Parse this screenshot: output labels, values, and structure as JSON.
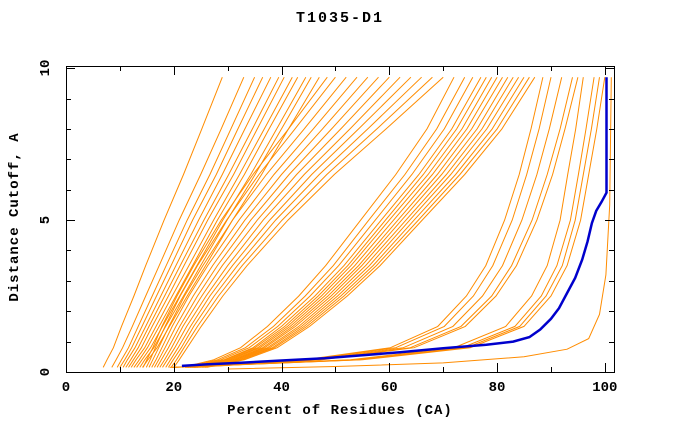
{
  "chart_data": {
    "type": "line",
    "title": "T1035-D1",
    "xlabel": "Percent of Residues (CA)",
    "ylabel": "Distance Cutoff, A",
    "xlim": [
      0,
      101.7
    ],
    "ylim": [
      0,
      10.07
    ],
    "x_major_ticks": [
      0,
      20,
      40,
      60,
      80,
      100
    ],
    "x_minor_ticks": [
      10,
      30,
      50,
      70,
      90
    ],
    "y_major_ticks": [
      0,
      5,
      10
    ],
    "y_minor_ticks": [
      1,
      2,
      3,
      4,
      6,
      7,
      8,
      9
    ],
    "grid": false,
    "legend": "none",
    "colors": {
      "predictions": "#ff8c00",
      "highlight": "#0000cc",
      "axis": "#000000",
      "background": "#ffffff"
    },
    "highlight_series": {
      "pts": [
        21.5,
        0.2,
        26,
        0.25,
        32,
        0.3,
        40,
        0.38,
        48,
        0.45,
        55,
        0.55,
        62,
        0.65,
        70,
        0.78,
        78,
        0.9,
        83,
        1.0,
        86,
        1.15,
        88,
        1.4,
        90,
        1.75,
        91.5,
        2.1,
        93,
        2.6,
        94.5,
        3.1,
        95.8,
        3.7,
        96.8,
        4.3,
        97.6,
        4.9,
        98.4,
        5.3,
        99.4,
        5.6,
        100.3,
        5.9,
        100.3,
        9.7
      ]
    },
    "prediction_series": [
      [
        6.9,
        0.15,
        7.6,
        0.4,
        8.8,
        0.8,
        10.3,
        1.5,
        12.6,
        2.5,
        14.8,
        3.5,
        18.2,
        5,
        21.8,
        6.5,
        25.2,
        8,
        29,
        9.7
      ],
      [
        8.5,
        0.15,
        9.3,
        0.4,
        10.5,
        0.8,
        12.3,
        1.5,
        14.8,
        2.5,
        17.3,
        3.5,
        21,
        5,
        25,
        6.5,
        28.8,
        8,
        33,
        9.7
      ],
      [
        9.5,
        0.15,
        10.3,
        0.4,
        11.6,
        0.8,
        13.4,
        1.5,
        16,
        2.5,
        18.6,
        3.5,
        22.5,
        5,
        26.7,
        6.5,
        30.6,
        8,
        35,
        9.7
      ],
      [
        10,
        0.15,
        10.9,
        0.4,
        12.2,
        0.8,
        14.1,
        1.5,
        16.8,
        2.5,
        19.5,
        3.5,
        23.5,
        5,
        27.9,
        6.5,
        31.9,
        8,
        36.5,
        9.7
      ],
      [
        10.6,
        0.15,
        11.4,
        0.4,
        12.8,
        0.8,
        14.8,
        1.5,
        17.6,
        2.5,
        20.4,
        3.5,
        24.6,
        5,
        29,
        6.5,
        33.2,
        8,
        38,
        9.7
      ],
      [
        11.1,
        0.15,
        12,
        0.4,
        13.4,
        0.8,
        15.4,
        1.5,
        18.3,
        2.5,
        21.2,
        3.5,
        25.6,
        5,
        30.2,
        6.5,
        34.6,
        8,
        39.5,
        9.7
      ],
      [
        11.6,
        0.15,
        12.5,
        0.4,
        14,
        0.8,
        16,
        1.5,
        19,
        2.5,
        21.9,
        3.5,
        26.3,
        5,
        31.1,
        6.5,
        35.5,
        8,
        40.5,
        9.7
      ],
      [
        12.1,
        0.15,
        13,
        0.4,
        14.6,
        0.8,
        16.7,
        1.5,
        19.7,
        2.5,
        22.8,
        3.5,
        27.4,
        5,
        32.2,
        6.5,
        36.8,
        8,
        42,
        9.7
      ],
      [
        12.6,
        0.15,
        13.6,
        0.4,
        15.1,
        0.8,
        17.3,
        1.5,
        20.4,
        2.5,
        23.5,
        3.5,
        28.1,
        5,
        33.1,
        6.5,
        37.7,
        8,
        43,
        9.7
      ],
      [
        13.1,
        0.15,
        14.1,
        0.4,
        15.7,
        0.8,
        17.9,
        1.5,
        21.1,
        2.5,
        24.3,
        3.5,
        29.1,
        5,
        34.3,
        6.5,
        39.1,
        8,
        44.5,
        9.7
      ],
      [
        13.7,
        0.15,
        14.6,
        0.4,
        16.3,
        0.8,
        18.5,
        1.5,
        21.8,
        2.5,
        25,
        3.5,
        29.9,
        5,
        35.1,
        6.5,
        40,
        8,
        45.5,
        9.7
      ],
      [
        14.2,
        0.15,
        15.2,
        0.4,
        16.9,
        0.8,
        19.2,
        1.5,
        22.5,
        2.5,
        25.9,
        3.5,
        30.9,
        5,
        36.3,
        6.5,
        41.3,
        8,
        47,
        9.7
      ],
      [
        14.3,
        0.15,
        15,
        0.4,
        16.1,
        0.8,
        17.8,
        1.5,
        20.6,
        2.5,
        23.7,
        3.5,
        28.8,
        5,
        34.7,
        6.5,
        41.3,
        8,
        48.5,
        9.7
      ],
      [
        14.9,
        0.15,
        15.6,
        0.4,
        16.6,
        0.8,
        18.4,
        1.5,
        21.2,
        2.5,
        24.4,
        3.5,
        29.8,
        5,
        35.8,
        6.5,
        42.5,
        8,
        50,
        9.7
      ],
      [
        15.4,
        0.15,
        16.1,
        0.4,
        17.2,
        0.8,
        19.1,
        1.5,
        22,
        2.5,
        25.4,
        3.5,
        30.9,
        5,
        37.2,
        6.5,
        44.2,
        8,
        52,
        9.7
      ],
      [
        15.9,
        0.15,
        16.7,
        0.4,
        17.8,
        0.8,
        19.7,
        1.5,
        22.8,
        2.5,
        26.3,
        3.5,
        32.1,
        5,
        38.6,
        6.5,
        45.9,
        8,
        54,
        9.7
      ],
      [
        16.4,
        0.15,
        17.2,
        0.4,
        18.4,
        0.8,
        20.4,
        1.5,
        23.6,
        2.5,
        27.2,
        3.5,
        33.2,
        5,
        40,
        6.5,
        47.6,
        8,
        56,
        9.7
      ],
      [
        16.9,
        0.15,
        17.7,
        0.4,
        19,
        0.8,
        21.1,
        1.5,
        24.4,
        2.5,
        28.1,
        3.5,
        34.3,
        5,
        41.4,
        6.5,
        49.3,
        8,
        58,
        9.7
      ],
      [
        17.4,
        0.15,
        18.3,
        0.4,
        19.6,
        0.8,
        21.7,
        1.5,
        25.2,
        2.5,
        29,
        3.5,
        35.5,
        5,
        42.8,
        6.5,
        51,
        8,
        60,
        9.7
      ],
      [
        17.9,
        0.15,
        18.8,
        0.4,
        20.2,
        0.8,
        22.4,
        1.5,
        26,
        2.5,
        30,
        3.5,
        36.6,
        5,
        44.2,
        6.5,
        52.7,
        8,
        62,
        9.7
      ],
      [
        18.5,
        0.15,
        19.4,
        0.4,
        20.8,
        0.8,
        23.1,
        1.5,
        26.7,
        2.5,
        30.9,
        3.5,
        37.8,
        5,
        45.6,
        6.5,
        54.3,
        8,
        64,
        9.7
      ],
      [
        19,
        0.15,
        19.9,
        0.4,
        21.4,
        0.8,
        23.7,
        1.5,
        27.5,
        2.5,
        31.8,
        3.5,
        38.9,
        5,
        47,
        6.5,
        56,
        8,
        66,
        9.7
      ],
      [
        19.5,
        0.15,
        20.5,
        0.4,
        21.9,
        0.8,
        24.4,
        1.5,
        28.3,
        2.5,
        32.7,
        3.5,
        40.1,
        5,
        48.4,
        6.5,
        57.7,
        8,
        68,
        9.7
      ],
      [
        20,
        0.15,
        21,
        0.4,
        22.5,
        0.8,
        25.1,
        1.5,
        29.1,
        2.5,
        33.6,
        3.5,
        41.2,
        5,
        49.8,
        6.5,
        59.4,
        8,
        70,
        9.7
      ],
      [
        21.6,
        0.15,
        27.4,
        0.4,
        32.4,
        0.8,
        37.4,
        1.5,
        43.2,
        2.5,
        48.2,
        3.5,
        54.7,
        5,
        61.2,
        6.5,
        67,
        8,
        72,
        9.7
      ],
      [
        22.2,
        0.15,
        28.1,
        0.4,
        33.3,
        0.8,
        38.5,
        1.5,
        44.4,
        2.5,
        49.6,
        3.5,
        56.2,
        5,
        62.9,
        6.5,
        68.8,
        8,
        74,
        9.7
      ],
      [
        22.7,
        0.15,
        28.7,
        0.4,
        34,
        0.8,
        39.3,
        1.5,
        45.3,
        2.5,
        50.6,
        3.5,
        57.4,
        5,
        64.2,
        6.5,
        70.2,
        8,
        75.5,
        9.7
      ],
      [
        23.1,
        0.15,
        29.3,
        0.4,
        34.7,
        0.8,
        40,
        1.5,
        46.2,
        2.5,
        51.6,
        3.5,
        58.5,
        5,
        65.5,
        6.5,
        71.6,
        8,
        77,
        9.7
      ],
      [
        23.4,
        0.15,
        29.6,
        0.4,
        35.1,
        0.8,
        40.6,
        1.5,
        46.8,
        2.5,
        52.3,
        3.5,
        59.3,
        5,
        66.3,
        6.5,
        72.5,
        8,
        78,
        9.7
      ],
      [
        23.7,
        0.15,
        30,
        0.4,
        35.6,
        0.8,
        41.1,
        1.5,
        47.4,
        2.5,
        52.9,
        3.5,
        60,
        5,
        67.2,
        6.5,
        73.5,
        8,
        79,
        9.7
      ],
      [
        24,
        0.15,
        30.4,
        0.4,
        36,
        0.8,
        41.6,
        1.5,
        48,
        2.5,
        53.6,
        3.5,
        60.8,
        5,
        68,
        6.5,
        74.4,
        8,
        80,
        9.7
      ],
      [
        24.3,
        0.15,
        30.8,
        0.4,
        36.5,
        0.8,
        42.1,
        1.5,
        48.6,
        2.5,
        54.3,
        3.5,
        61.6,
        5,
        68.9,
        6.5,
        75.3,
        8,
        81,
        9.7
      ],
      [
        24.6,
        0.15,
        31.2,
        0.4,
        36.9,
        0.8,
        42.6,
        1.5,
        49.2,
        2.5,
        54.9,
        3.5,
        62.3,
        5,
        69.7,
        6.5,
        76.3,
        8,
        82,
        9.7
      ],
      [
        24.9,
        0.15,
        31.5,
        0.4,
        37.4,
        0.8,
        43.2,
        1.5,
        49.8,
        2.5,
        55.6,
        3.5,
        63.1,
        5,
        70.6,
        6.5,
        77.2,
        8,
        83,
        9.7
      ],
      [
        25.2,
        0.15,
        31.9,
        0.4,
        37.8,
        0.8,
        43.7,
        1.5,
        50.4,
        2.5,
        56.3,
        3.5,
        63.8,
        5,
        71.4,
        6.5,
        78.1,
        8,
        84,
        9.7
      ],
      [
        25.5,
        0.15,
        32.3,
        0.4,
        38.3,
        0.8,
        44.2,
        1.5,
        51,
        2.5,
        57,
        3.5,
        64.6,
        5,
        72.3,
        6.5,
        79.1,
        8,
        85,
        9.7
      ],
      [
        25.8,
        0.15,
        32.7,
        0.4,
        38.7,
        0.8,
        44.7,
        1.5,
        51.6,
        2.5,
        57.6,
        3.5,
        65.4,
        5,
        73.1,
        6.5,
        80,
        8,
        86,
        9.7
      ],
      [
        26.1,
        0.15,
        33.1,
        0.4,
        39.2,
        0.8,
        45.2,
        1.5,
        52.2,
        2.5,
        58.3,
        3.5,
        66.1,
        5,
        74,
        6.5,
        80.9,
        8,
        87,
        9.7
      ],
      [
        22.1,
        0.15,
        44.3,
        0.4,
        60.2,
        0.8,
        69,
        1.5,
        74.3,
        2.5,
        77.9,
        3.5,
        81.4,
        5,
        84.1,
        6.5,
        86.3,
        8,
        88.5,
        9.7
      ],
      [
        22.5,
        0.15,
        45,
        0.4,
        61.2,
        0.8,
        70.2,
        1.5,
        75.6,
        2.5,
        79.2,
        3.5,
        82.8,
        5,
        85.5,
        6.5,
        87.8,
        8,
        90,
        9.7
      ],
      [
        23,
        0.15,
        46,
        0.4,
        62.6,
        0.8,
        71.8,
        1.5,
        77.3,
        2.5,
        81,
        3.5,
        84.6,
        5,
        87.4,
        6.5,
        89.7,
        8,
        92,
        9.7
      ],
      [
        23.5,
        0.15,
        47,
        0.4,
        63.9,
        0.8,
        73.3,
        1.5,
        79,
        2.5,
        82.7,
        3.5,
        86.5,
        5,
        89.3,
        6.5,
        91.7,
        8,
        94,
        9.7
      ],
      [
        19.2,
        0.15,
        52.8,
        0.4,
        72,
        0.8,
        81.6,
        1.5,
        86.4,
        2.5,
        89.3,
        3.5,
        91.7,
        5,
        93.1,
        6.5,
        94.6,
        8,
        96,
        9.7
      ],
      [
        19.6,
        0.15,
        53.9,
        0.4,
        73.5,
        0.8,
        83.3,
        1.5,
        88.2,
        2.5,
        91.1,
        3.5,
        93.6,
        5,
        95.1,
        6.5,
        96.5,
        8,
        98,
        9.7
      ],
      [
        20,
        0.15,
        55,
        0.4,
        75,
        0.8,
        85,
        1.5,
        90,
        2.5,
        93,
        3.5,
        95.5,
        5,
        97,
        6.5,
        98.5,
        8,
        100,
        9.7
      ],
      [
        23.8,
        0.15,
        47.5,
        0.4,
        64.6,
        0.8,
        74.1,
        1.5,
        79.8,
        2.5,
        83.6,
        3.5,
        87.4,
        5,
        90.3,
        6.5,
        92.6,
        8,
        95,
        9.7
      ],
      [
        19.8,
        0.15,
        54.5,
        0.4,
        74.3,
        0.8,
        84.2,
        1.5,
        89.1,
        2.5,
        92.1,
        3.5,
        94.5,
        5,
        96,
        6.5,
        97.5,
        8,
        99,
        9.7
      ],
      [
        30,
        0.1,
        50,
        0.18,
        70,
        0.3,
        85,
        0.5,
        93,
        0.75,
        97,
        1.1,
        99,
        1.9,
        100.2,
        3.2,
        100.9,
        5.5,
        101.2,
        9.7
      ]
    ]
  }
}
